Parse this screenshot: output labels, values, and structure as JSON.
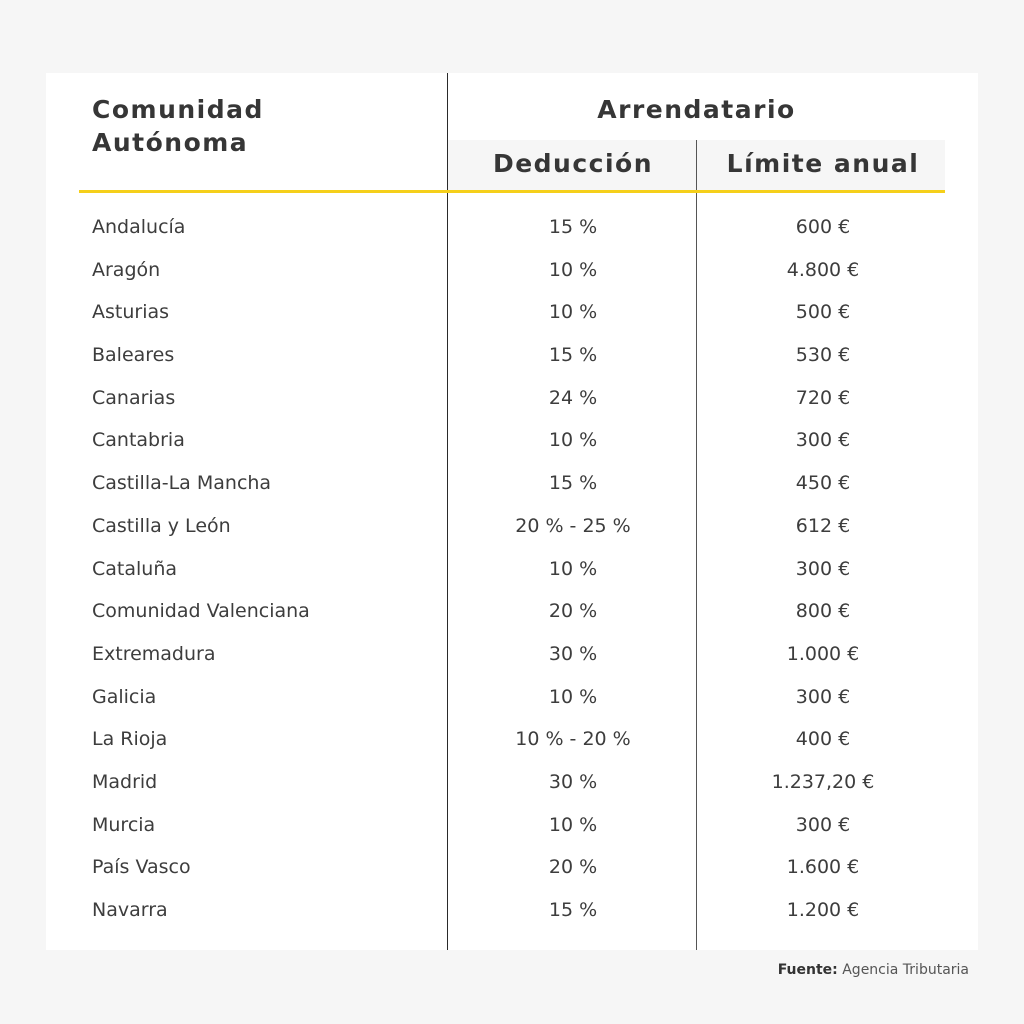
{
  "table": {
    "header": {
      "region": "Comunidad Autónoma",
      "region_line1": "Comunidad",
      "region_line2": "Autónoma",
      "group": "Arrendatario",
      "deduction": "Deducción",
      "limit": "Límite anual"
    },
    "rows": [
      {
        "region": "Andalucía",
        "deduction": "15 %",
        "limit": "600 €"
      },
      {
        "region": "Aragón",
        "deduction": "10 %",
        "limit": "4.800 €"
      },
      {
        "region": "Asturias",
        "deduction": "10 %",
        "limit": "500 €"
      },
      {
        "region": "Baleares",
        "deduction": "15 %",
        "limit": "530 €"
      },
      {
        "region": "Canarias",
        "deduction": "24 %",
        "limit": "720 €"
      },
      {
        "region": "Cantabria",
        "deduction": "10 %",
        "limit": "300 €"
      },
      {
        "region": "Castilla-La Mancha",
        "deduction": "15 %",
        "limit": "450 €"
      },
      {
        "region": "Castilla y León",
        "deduction": "20 % - 25 %",
        "limit": "612 €"
      },
      {
        "region": "Cataluña",
        "deduction": "10 %",
        "limit": "300 €"
      },
      {
        "region": "Comunidad Valenciana",
        "deduction": "20 %",
        "limit": "800 €"
      },
      {
        "region": "Extremadura",
        "deduction": "30 %",
        "limit": "1.000 €"
      },
      {
        "region": "Galicia",
        "deduction": "10 %",
        "limit": "300 €"
      },
      {
        "region": "La Rioja",
        "deduction": "10 % - 20 %",
        "limit": "400 €"
      },
      {
        "region": "Madrid",
        "deduction": "30 %",
        "limit": "1.237,20 €"
      },
      {
        "region": "Murcia",
        "deduction": "10 %",
        "limit": "300 €"
      },
      {
        "region": "País Vasco",
        "deduction": "20 %",
        "limit": "1.600 €"
      },
      {
        "region": "Navarra",
        "deduction": "15 %",
        "limit": "1.200 €"
      }
    ]
  },
  "source": {
    "label": "Fuente:",
    "value": "Agencia Tributaria"
  },
  "colors": {
    "accent": "#f5cf1a",
    "background": "#f6f6f6",
    "card": "#ffffff"
  }
}
